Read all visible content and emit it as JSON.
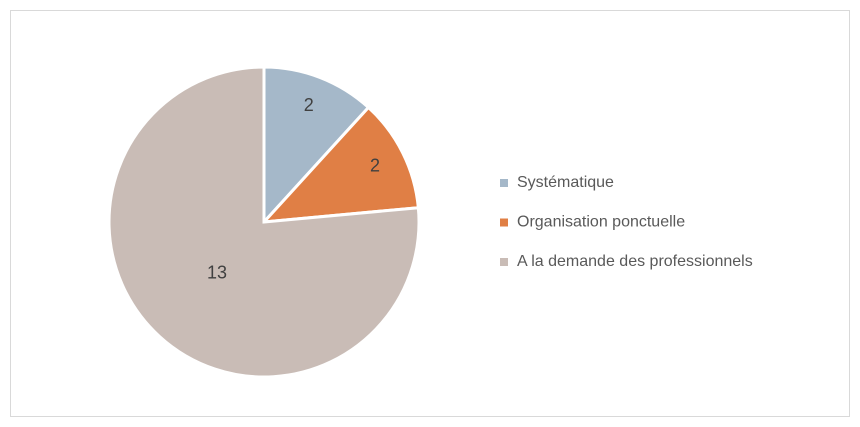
{
  "chart_data": {
    "type": "pie",
    "categories": [
      "Systématique",
      "Organisation ponctuelle",
      "A la demande des professionnels"
    ],
    "values": [
      2,
      2,
      13
    ],
    "colors": [
      "#a5b8c9",
      "#e07f45",
      "#c9bcb6"
    ],
    "legend": "right"
  }
}
